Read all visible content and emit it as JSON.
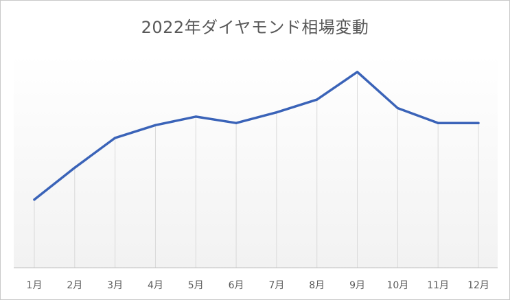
{
  "chart_data": {
    "type": "line",
    "title": "2022年ダイヤモンド相場変動",
    "categories": [
      "1月",
      "2月",
      "3月",
      "4月",
      "5月",
      "6月",
      "7月",
      "8月",
      "9月",
      "10月",
      "11月",
      "12月"
    ],
    "series": [
      {
        "values": [
          0.32,
          0.47,
          0.61,
          0.67,
          0.71,
          0.68,
          0.73,
          0.79,
          0.92,
          0.75,
          0.68,
          0.68
        ]
      }
    ],
    "ylim": [
      0,
      1
    ],
    "yaxis_visible": false,
    "grid": "vertical",
    "colors": {
      "line": "#3a63b8",
      "grid": "#d9d9d9",
      "axis": "#bfbfbf",
      "text": "#595959"
    }
  }
}
